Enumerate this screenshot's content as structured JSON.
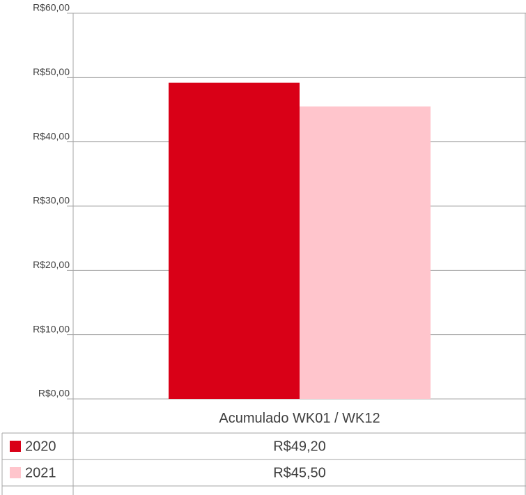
{
  "chart_data": {
    "type": "bar",
    "categories": [
      "Acumulado WK01 / WK12"
    ],
    "series": [
      {
        "name": "2020",
        "color": "#d90017",
        "values": [
          49.2
        ],
        "value_labels": [
          "R$49,20"
        ]
      },
      {
        "name": "2021",
        "color": "#ffc5cc",
        "values": [
          45.5
        ],
        "value_labels": [
          "R$45,50"
        ]
      }
    ],
    "ylim": [
      0,
      60
    ],
    "yticks": [
      {
        "value": 0,
        "label": "R$0,00"
      },
      {
        "value": 10,
        "label": "R$10,00"
      },
      {
        "value": 20,
        "label": "R$20,00"
      },
      {
        "value": 30,
        "label": "R$30,00"
      },
      {
        "value": 40,
        "label": "R$40,00"
      },
      {
        "value": 50,
        "label": "R$50,00"
      },
      {
        "value": 60,
        "label": "R$60,00"
      }
    ],
    "grid": true
  }
}
